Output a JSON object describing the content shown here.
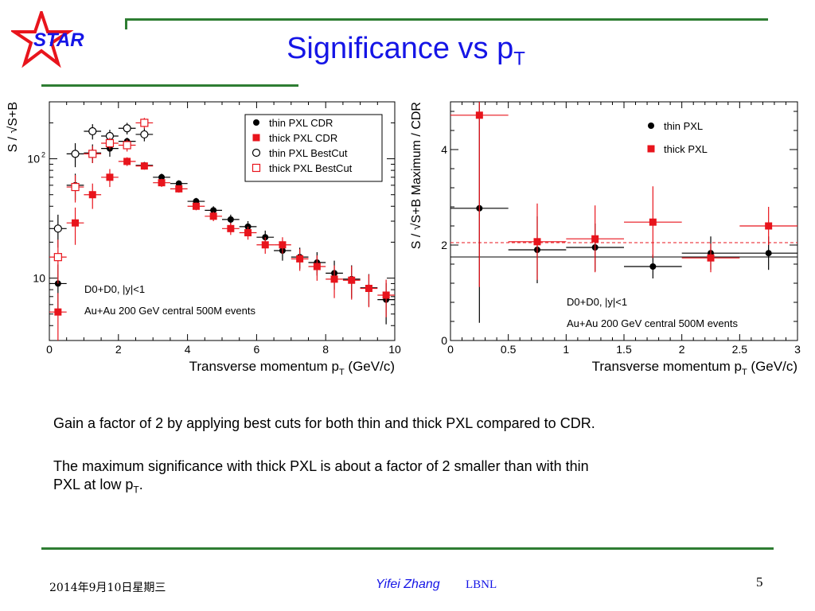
{
  "slide": {
    "title": "Significance vs p",
    "title_sub": "T",
    "logo_text": "STAR",
    "body_line1": "Gain a factor of 2 by applying best cuts for both thin and thick PXL compared to CDR.",
    "body_line2": "The maximum significance with thick PXL is about a factor of 2 smaller than with thin",
    "body_line3_main": "PXL at low p",
    "body_line3_sub": "T",
    "body_line3_end": ".",
    "footer_date": "2014年9月10日星期三",
    "footer_author": "Yifei Zhang",
    "footer_institution": "LBNL",
    "page_number": "5"
  },
  "colors": {
    "title": "#1515e6",
    "rule": "#2e7d32",
    "red": "#e8141c",
    "black": "#000000"
  },
  "chart_data": [
    {
      "type": "scatter",
      "ylabel": "S / √S+B",
      "xlabel": "Transverse momentum p",
      "xlabel_sub": "T",
      "xlabel_unit": " (GeV/c)",
      "xlim": [
        0,
        10
      ],
      "ylim": [
        3,
        300
      ],
      "yscale": "log",
      "xticks": [
        "0",
        "2",
        "4",
        "6",
        "8",
        "10"
      ],
      "yticks": [
        {
          "value": 10,
          "label": "10"
        },
        {
          "value": 100,
          "label": "10",
          "sup": "2"
        }
      ],
      "annotation_line1": "D",
      "annotation_line1_full": "D0+D0, |y|<1",
      "annotation_line2": "Au+Au 200 GeV central 500M events",
      "legend_position": "top-right",
      "series": [
        {
          "name": "thin PXL CDR",
          "marker": "filled-circle",
          "color": "#000000",
          "x": [
            0.25,
            0.75,
            1.25,
            1.75,
            2.25,
            2.75,
            3.25,
            3.75,
            4.25,
            4.75,
            5.25,
            5.75,
            6.25,
            6.75,
            7.25,
            7.75,
            8.25,
            8.75,
            9.25,
            9.75
          ],
          "y": [
            9.0,
            60,
            112,
            122,
            140,
            88,
            70,
            62,
            44,
            37,
            31,
            27,
            22,
            17,
            15,
            13.5,
            11,
            9.8,
            8.3,
            6.6
          ],
          "err": [
            4,
            15,
            20,
            18,
            10,
            6,
            5,
            4,
            3,
            3,
            3,
            3,
            3,
            3,
            3,
            3,
            3,
            3,
            2.5,
            2.5
          ]
        },
        {
          "name": "thick PXL CDR",
          "marker": "filled-square",
          "color": "#e8141c",
          "x": [
            0.25,
            0.75,
            1.25,
            1.75,
            2.25,
            2.75,
            3.25,
            3.75,
            4.25,
            4.75,
            5.25,
            5.75,
            6.25,
            6.75,
            7.25,
            7.75,
            8.25,
            8.75,
            9.25,
            9.75
          ],
          "y": [
            5.2,
            29,
            50,
            70,
            95,
            87,
            63,
            56,
            40,
            33,
            26,
            24,
            19,
            19,
            14.5,
            12.5,
            9.8,
            9.6,
            8.2,
            7.2
          ],
          "err": [
            2.3,
            10,
            12,
            12,
            8,
            6,
            5,
            4,
            3,
            3,
            3,
            3,
            3,
            3,
            3,
            3,
            3,
            3,
            2.5,
            2.5
          ]
        },
        {
          "name": "thin PXL BestCut",
          "marker": "open-circle",
          "color": "#000000",
          "x": [
            0.25,
            0.75,
            1.25,
            1.75,
            2.25,
            2.75
          ],
          "y": [
            26,
            110,
            170,
            155,
            180,
            160
          ],
          "err": [
            8,
            25,
            25,
            20,
            20,
            20
          ]
        },
        {
          "name": "thick PXL BestCut",
          "marker": "open-square",
          "color": "#e8141c",
          "x": [
            0.25,
            0.75,
            1.25,
            1.75,
            2.25,
            2.75
          ],
          "y": [
            15,
            58,
            110,
            135,
            130,
            200
          ],
          "err": [
            6,
            15,
            18,
            15,
            15,
            20
          ]
        }
      ]
    },
    {
      "type": "scatter",
      "ylabel": "S / √S+B Maximum / CDR",
      "xlabel": "Transverse momentum p",
      "xlabel_sub": "T",
      "xlabel_unit": " (GeV/c)",
      "xlim": [
        0,
        3
      ],
      "ylim": [
        0,
        5
      ],
      "xticks": [
        "0",
        "0.5",
        "1",
        "1.5",
        "2",
        "2.5",
        "3"
      ],
      "yticks": [
        "0",
        "2",
        "4"
      ],
      "annotation_line1_full": "D0+D0, |y|<1",
      "annotation_line2": "Au+Au 200 GeV central 500M events",
      "legend_position": "top-right",
      "reference_lines": [
        {
          "series": "thin PXL",
          "y": 1.75,
          "style": "solid"
        },
        {
          "series": "thick PXL",
          "y": 2.05,
          "style": "dashed"
        }
      ],
      "series": [
        {
          "name": "thin PXL",
          "marker": "filled-circle",
          "color": "#000000",
          "x": [
            0.25,
            0.75,
            1.25,
            1.75,
            2.25,
            2.75
          ],
          "y": [
            2.77,
            1.9,
            1.95,
            1.55,
            1.83,
            1.83
          ],
          "err": [
            2.4,
            0.7,
            0.5,
            0.25,
            0.35,
            0.35
          ]
        },
        {
          "name": "thick PXL",
          "marker": "filled-square",
          "color": "#e8141c",
          "x": [
            0.25,
            0.75,
            1.25,
            1.75,
            2.25,
            2.75
          ],
          "y": [
            4.72,
            2.07,
            2.13,
            2.48,
            1.73,
            2.4
          ],
          "err": [
            3.6,
            0.8,
            0.7,
            0.75,
            0.3,
            0.4
          ]
        }
      ]
    }
  ]
}
